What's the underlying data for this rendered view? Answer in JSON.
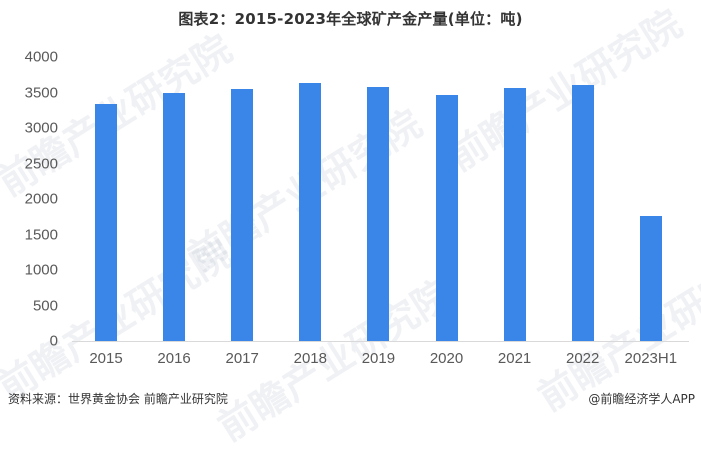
{
  "title": "图表2：2015-2023年全球矿产金产量(单位：吨)",
  "watermark": "前瞻产业研究院",
  "footer": {
    "source": "资料来源：世界黄金协会 前瞻产业研究院",
    "credit": "@前瞻经济学人APP"
  },
  "colors": {
    "bar": "#3a86e8",
    "axis": "#d9d9d9",
    "text": "#595959"
  },
  "chart_data": {
    "type": "bar",
    "title": "图表2：2015-2023年全球矿产金产量(单位：吨)",
    "xlabel": "",
    "ylabel": "",
    "unit": "吨",
    "categories": [
      "2015",
      "2016",
      "2017",
      "2018",
      "2019",
      "2020",
      "2021",
      "2022",
      "2023H1"
    ],
    "values": [
      3338,
      3493,
      3549,
      3634,
      3577,
      3465,
      3563,
      3606,
      1761
    ],
    "ylim": [
      0,
      4000
    ],
    "yticks": [
      "0",
      "500",
      "1000",
      "1500",
      "2000",
      "2500",
      "3000",
      "3500",
      "4000"
    ],
    "grid": false,
    "legend": null
  }
}
